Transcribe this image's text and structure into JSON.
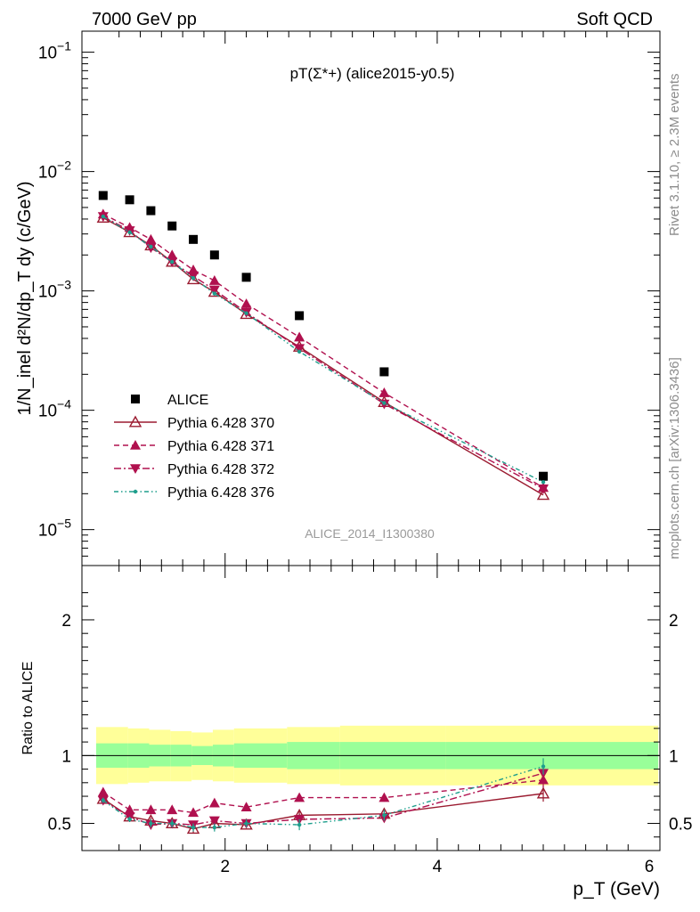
{
  "header": {
    "left": "7000 GeV pp",
    "right": "Soft QCD"
  },
  "side_labels": {
    "rivet": "Rivet 3.1.10, ≥ 2.3M events",
    "mcplots": "mcplots.cern.ch [arXiv:1306.3436]"
  },
  "chart_data": [
    {
      "type": "scatter",
      "title": "pT(Σ*+) (alice2015-y0.5)",
      "watermark": "ALICE_2014_I1300380",
      "xlabel": "p_T (GeV)",
      "ylabel": "1/N_inel d²N/dp_T dy (c/GeV)",
      "yscale": "log",
      "xlim": [
        0.65,
        6.1
      ],
      "ylim": [
        5e-06,
        0.15
      ],
      "y_ticks": [
        "10^-5",
        "10^-4",
        "10^-3",
        "10^-2",
        "10^-1"
      ],
      "legend_position": "bottom-left",
      "x": [
        0.85,
        1.1,
        1.3,
        1.5,
        1.7,
        1.9,
        2.2,
        2.7,
        3.5,
        5.0
      ],
      "series": [
        {
          "name": "ALICE",
          "color": "#000000",
          "marker": "square",
          "line": "none",
          "values": [
            0.0063,
            0.0058,
            0.0047,
            0.0035,
            0.0027,
            0.002,
            0.0013,
            0.00062,
            0.00021,
            2.8e-05
          ]
        },
        {
          "name": "Pythia 6.428 370",
          "color": "#9b1b30",
          "marker": "triangle-up-open",
          "line": "solid",
          "values": [
            0.0041,
            0.0031,
            0.0024,
            0.00175,
            0.00125,
            0.00098,
            0.00064,
            0.00034,
            0.000117,
            1.95e-05
          ]
        },
        {
          "name": "Pythia 6.428 371",
          "color": "#b0104e",
          "marker": "triangle-up",
          "line": "dashed",
          "values": [
            0.0044,
            0.0034,
            0.0027,
            0.002,
            0.0015,
            0.00122,
            0.00078,
            0.00041,
            0.00014,
            2.25e-05
          ]
        },
        {
          "name": "Pythia 6.428 372",
          "color": "#b0104e",
          "marker": "triangle-down",
          "line": "dashdot",
          "values": [
            0.0042,
            0.0032,
            0.0023,
            0.00175,
            0.00133,
            0.00102,
            0.00066,
            0.00033,
            0.000113,
            2.2e-05
          ]
        },
        {
          "name": "Pythia 6.428 376",
          "color": "#1e9e8c",
          "marker": "dot",
          "line": "dashdotdot",
          "values": [
            0.0042,
            0.0031,
            0.00235,
            0.00175,
            0.00128,
            0.00095,
            0.00065,
            0.00031,
            0.000115,
            2.5e-05
          ]
        }
      ]
    },
    {
      "type": "scatter",
      "ylabel": "Ratio to ALICE",
      "xlabel": "p_T (GeV)",
      "xlim": [
        0.65,
        6.1
      ],
      "ylim": [
        0.3,
        2.4
      ],
      "y_ticks": [
        "0.5",
        "1",
        "2"
      ],
      "x_ticks": [
        "2",
        "4",
        "6"
      ],
      "reference_line": 1,
      "bands": {
        "edges": [
          0.7,
          1.0,
          1.2,
          1.4,
          1.6,
          1.8,
          2.0,
          2.5,
          3.0,
          4.0,
          6.0
        ],
        "outer_colour": "#ffff99",
        "inner_colour": "#99ff99",
        "outer_lo": [
          0.79,
          0.8,
          0.81,
          0.81,
          0.82,
          0.81,
          0.8,
          0.79,
          0.78,
          0.78
        ],
        "outer_hi": [
          1.21,
          1.2,
          1.19,
          1.18,
          1.17,
          1.19,
          1.2,
          1.21,
          1.22,
          1.22
        ],
        "inner_lo": [
          0.91,
          0.91,
          0.92,
          0.92,
          0.93,
          0.92,
          0.91,
          0.9,
          0.9,
          0.9
        ],
        "inner_hi": [
          1.09,
          1.09,
          1.08,
          1.08,
          1.07,
          1.08,
          1.09,
          1.1,
          1.1,
          1.1
        ]
      },
      "x": [
        0.85,
        1.1,
        1.3,
        1.5,
        1.7,
        1.9,
        2.2,
        2.7,
        3.5,
        5.0
      ],
      "series": [
        {
          "name": "Pythia 6.428 370",
          "color": "#9b1b30",
          "marker": "triangle-up-open",
          "line": "solid",
          "values": [
            0.68,
            0.55,
            0.52,
            0.5,
            0.46,
            0.5,
            0.49,
            0.56,
            0.57,
            0.72
          ],
          "errors": [
            0.02,
            0.02,
            0.02,
            0.02,
            0.03,
            0.02,
            0.02,
            0.03,
            0.03,
            0.06
          ]
        },
        {
          "name": "Pythia 6.428 371",
          "color": "#b0104e",
          "marker": "triangle-up",
          "line": "dashed",
          "values": [
            0.73,
            0.6,
            0.6,
            0.6,
            0.58,
            0.65,
            0.62,
            0.69,
            0.69,
            0.82
          ],
          "errors": [
            0.02,
            0.02,
            0.02,
            0.02,
            0.02,
            0.02,
            0.02,
            0.02,
            0.03,
            0.05
          ]
        },
        {
          "name": "Pythia 6.428 372",
          "color": "#b0104e",
          "marker": "triangle-down",
          "line": "dashdot",
          "values": [
            0.67,
            0.55,
            0.49,
            0.5,
            0.49,
            0.52,
            0.5,
            0.53,
            0.54,
            0.87
          ],
          "errors": [
            0.02,
            0.02,
            0.02,
            0.02,
            0.02,
            0.02,
            0.03,
            0.03,
            0.03,
            0.05
          ]
        },
        {
          "name": "Pythia 6.428 376",
          "color": "#1e9e8c",
          "marker": "dot",
          "line": "dashdotdot",
          "values": [
            0.67,
            0.53,
            0.5,
            0.5,
            0.47,
            0.47,
            0.5,
            0.49,
            0.56,
            0.92
          ],
          "errors": [
            0.02,
            0.02,
            0.03,
            0.03,
            0.03,
            0.03,
            0.03,
            0.04,
            0.04,
            0.06
          ]
        }
      ]
    }
  ]
}
